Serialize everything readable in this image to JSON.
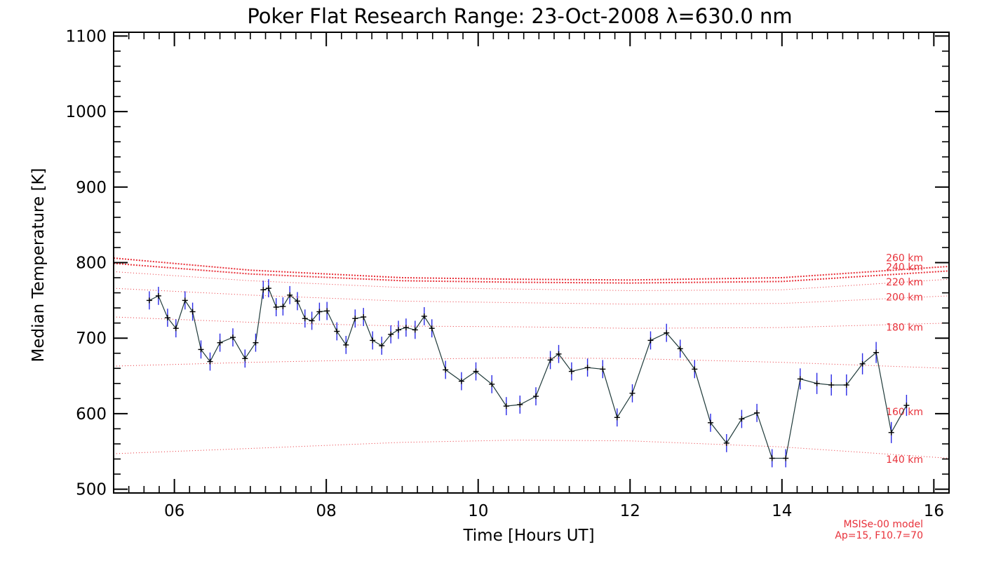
{
  "chart_data": {
    "type": "line",
    "title": "Poker Flat Research Range: 23-Oct-2008 λ=630.0 nm",
    "xlabel": "Time [Hours UT]",
    "ylabel": "Median Temperature [K]",
    "xlim": [
      5.2,
      16.2
    ],
    "ylim": [
      495,
      1105
    ],
    "xticks": [
      6,
      8,
      10,
      12,
      14,
      16
    ],
    "xtick_labels": [
      "06",
      "08",
      "10",
      "12",
      "14",
      "16"
    ],
    "yticks": [
      500,
      600,
      700,
      800,
      900,
      1000,
      1100
    ],
    "ytick_labels": [
      "500",
      "600",
      "700",
      "800",
      "900",
      "1000",
      "1100"
    ],
    "grid": false,
    "colors": {
      "data_line": "#1f3a3a",
      "error_bar": "#2a2ae6",
      "marker": "#000000",
      "model": "#e8313a"
    },
    "series": [
      {
        "type": "line-errorbar",
        "x": [
          5.67,
          5.79,
          5.91,
          6.02,
          6.14,
          6.24,
          6.35,
          6.47,
          6.6,
          6.77,
          6.93,
          7.07,
          7.17,
          7.24,
          7.34,
          7.43,
          7.52,
          7.62,
          7.72,
          7.81,
          7.91,
          8.01,
          8.14,
          8.26,
          8.38,
          8.49,
          8.61,
          8.73,
          8.85,
          8.95,
          9.05,
          9.17,
          9.29,
          9.39,
          9.57,
          9.78,
          9.97,
          10.18,
          10.37,
          10.55,
          10.76,
          10.95,
          11.06,
          11.23,
          11.44,
          11.64,
          11.83,
          12.03,
          12.27,
          12.48,
          12.66,
          12.85,
          13.06,
          13.27,
          13.47,
          13.67,
          13.87,
          14.05,
          14.24,
          14.46,
          14.65,
          14.85,
          15.06,
          15.24,
          15.44,
          15.64
        ],
        "y": [
          750,
          756,
          727,
          713,
          750,
          735,
          685,
          669,
          694,
          701,
          673,
          694,
          764,
          766,
          741,
          742,
          757,
          749,
          726,
          723,
          735,
          736,
          709,
          691,
          726,
          728,
          697,
          690,
          705,
          711,
          714,
          711,
          729,
          713,
          658,
          643,
          656,
          639,
          610,
          612,
          623,
          671,
          679,
          656,
          661,
          659,
          595,
          627,
          697,
          707,
          686,
          659,
          588,
          561,
          593,
          601,
          541,
          541,
          646,
          640,
          638,
          638,
          666,
          681,
          575,
          611
        ],
        "error": [
          12,
          12,
          12,
          12,
          12,
          12,
          12,
          12,
          12,
          12,
          12,
          12,
          12,
          12,
          12,
          12,
          12,
          12,
          12,
          12,
          12,
          12,
          12,
          12,
          12,
          12,
          12,
          12,
          12,
          12,
          12,
          12,
          12,
          12,
          12,
          12,
          12,
          12,
          12,
          12,
          12,
          12,
          12,
          12,
          12,
          12,
          12,
          12,
          12,
          12,
          12,
          12,
          12,
          12,
          12,
          12,
          12,
          12,
          14,
          14,
          14,
          14,
          14,
          14,
          14,
          14
        ]
      }
    ],
    "model_curves": [
      {
        "label": "140 km",
        "x": [
          5.2,
          7,
          9,
          10.5,
          12,
          14,
          16.2
        ],
        "y": [
          547,
          554,
          562,
          565,
          564,
          556,
          541
        ]
      },
      {
        "label": "160 km",
        "x": [
          5.2,
          7,
          9,
          10.5,
          12,
          14,
          16.2
        ],
        "y": [
          663,
          668,
          672,
          674,
          673,
          668,
          660
        ]
      },
      {
        "label": "180 km",
        "x": [
          5.2,
          7,
          9,
          10.5,
          12,
          14,
          16.2
        ],
        "y": [
          728,
          721,
          716,
          715,
          713,
          714,
          720
        ]
      },
      {
        "label": "200 km",
        "x": [
          5.2,
          7,
          9,
          10.5,
          12,
          14,
          16.2
        ],
        "y": [
          766,
          757,
          749,
          747,
          745,
          746,
          756
        ]
      },
      {
        "label": "220 km",
        "x": [
          5.2,
          7,
          9,
          10.5,
          12,
          14,
          16.2
        ],
        "y": [
          788,
          776,
          767,
          765,
          763,
          764,
          778
        ]
      },
      {
        "label": "240 km",
        "x": [
          5.2,
          7,
          9,
          10.5,
          12,
          14,
          16.2
        ],
        "y": [
          799,
          785,
          776,
          774,
          773,
          775,
          789
        ]
      },
      {
        "label": "260 km",
        "x": [
          5.2,
          7,
          9,
          10.5,
          12,
          14,
          16.2
        ],
        "y": [
          806,
          790,
          780,
          778,
          777,
          780,
          795
        ]
      }
    ],
    "model_labels_y": [
      535,
      598,
      710,
      750,
      770,
      790,
      802
    ],
    "note_lines": [
      "MSISe-00 model",
      "Ap=15, F10.7=70"
    ]
  }
}
